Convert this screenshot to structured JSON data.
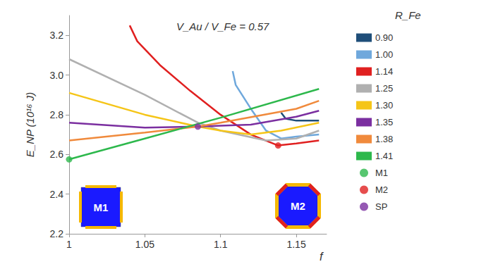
{
  "chart_data": {
    "type": "line",
    "x_label": "f",
    "y_label": "E_NP (10¹⁶ J)",
    "annotations": [
      "V_Au / V_Fe = 0.57"
    ],
    "legend_title": "R_Fe",
    "inset_labels": [
      "M1",
      "M2"
    ],
    "xlim": [
      1,
      1.17
    ],
    "xticks": [
      1,
      1.05,
      1.1,
      1.15
    ],
    "ylim": [
      2.2,
      3.3
    ],
    "yticks": [
      2.2,
      2.4,
      2.6,
      2.8,
      {
        "value": 3,
        "label": "3.0"
      },
      3.2
    ],
    "grid": false,
    "legend": "right",
    "series": [
      {
        "name": "0.90",
        "color": "#1f4e79",
        "x": [
          1.14,
          1.143,
          1.15,
          1.165
        ],
        "values": [
          2.81,
          2.78,
          2.77,
          2.77
        ]
      },
      {
        "name": "1.00",
        "color": "#6fa8dc",
        "x": [
          1.108,
          1.11,
          1.12,
          1.13,
          1.14,
          1.15,
          1.165
        ],
        "values": [
          3.02,
          2.95,
          2.83,
          2.72,
          2.68,
          2.69,
          2.7
        ]
      },
      {
        "name": "1.14",
        "color": "#e02020",
        "x": [
          1.04,
          1.045,
          1.06,
          1.08,
          1.1,
          1.12,
          1.138,
          1.15,
          1.165
        ],
        "values": [
          3.25,
          3.17,
          3.05,
          2.92,
          2.8,
          2.7,
          2.645,
          2.655,
          2.67
        ]
      },
      {
        "name": "1.25",
        "color": "#b0b0b0",
        "x": [
          1.0,
          1.05,
          1.085,
          1.1,
          1.13,
          1.15,
          1.165
        ],
        "values": [
          3.08,
          2.9,
          2.76,
          2.72,
          2.67,
          2.68,
          2.72
        ]
      },
      {
        "name": "1.30",
        "color": "#f5c518",
        "x": [
          1.0,
          1.05,
          1.085,
          1.1,
          1.12,
          1.14,
          1.165
        ],
        "values": [
          2.91,
          2.8,
          2.74,
          2.72,
          2.7,
          2.72,
          2.76
        ]
      },
      {
        "name": "1.35",
        "color": "#7b2fa0",
        "x": [
          1.0,
          1.05,
          1.085,
          1.1,
          1.12,
          1.15,
          1.165
        ],
        "values": [
          2.76,
          2.735,
          2.74,
          2.745,
          2.75,
          2.79,
          2.82
        ]
      },
      {
        "name": "1.38",
        "color": "#f08a3c",
        "x": [
          1.0,
          1.05,
          1.085,
          1.1,
          1.15,
          1.165
        ],
        "values": [
          2.67,
          2.71,
          2.74,
          2.76,
          2.83,
          2.87
        ]
      },
      {
        "name": "1.41",
        "color": "#2db84c",
        "x": [
          1.0,
          1.05,
          1.1,
          1.165
        ],
        "values": [
          2.575,
          2.68,
          2.785,
          2.93
        ]
      },
      {
        "name": "M1",
        "type": "scatter",
        "marker": "circle",
        "color": "#2db84c",
        "x": [
          1.0
        ],
        "values": [
          2.575
        ]
      },
      {
        "name": "M2",
        "type": "scatter",
        "marker": "circle",
        "color": "#e02020",
        "x": [
          1.138
        ],
        "values": [
          2.645
        ]
      },
      {
        "name": "SP",
        "type": "scatter",
        "marker": "circle",
        "color": "#7b2fa0",
        "x": [
          1.085
        ],
        "values": [
          2.74
        ]
      }
    ]
  }
}
